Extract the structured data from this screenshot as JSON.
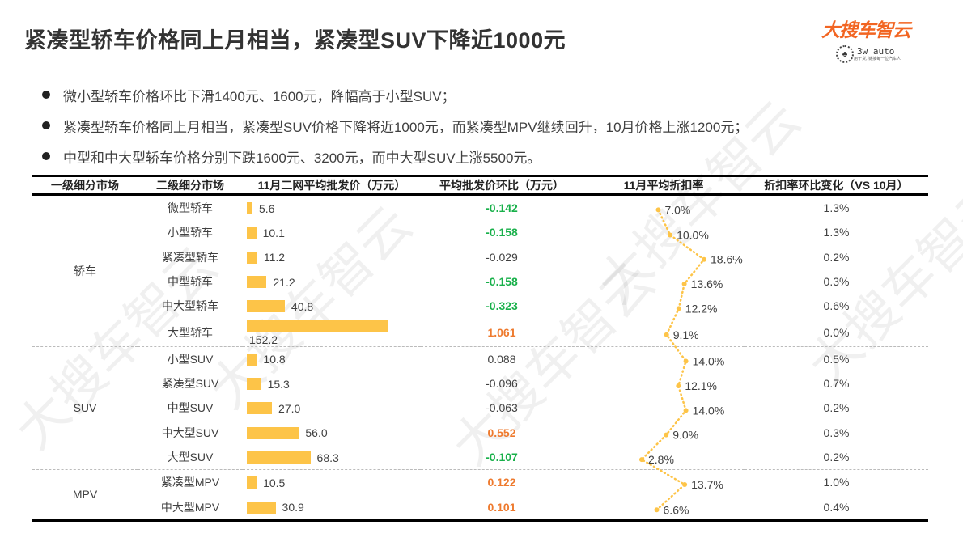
{
  "title": "紧凑型轿车价格同上月相当，紧凑型SUV下降近1000元",
  "logo": {
    "main": "大搜车智云",
    "sub": "3w auto",
    "tagline": "用干货, 链接每一位汽车人",
    "emblem": "♣"
  },
  "bullets": [
    "微小型轿车价格环比下滑1400元、1600元，降幅高于小型SUV；",
    "紧凑型轿车价格同上月相当，紧凑型SUV价格下降将近1000元，而紧凑型MPV继续回升，10月价格上涨1200元；",
    "中型和中大型轿车价格分别下跌1600元、3200元，而中大型SUV上涨5500元。"
  ],
  "table": {
    "headers": [
      "一级细分市场",
      "二级细分市场",
      "11月二网平均批发价（万元）",
      "平均批发价环比（万元）",
      "11月平均折扣率",
      "折扣率环比变化（VS 10月）"
    ],
    "groups": [
      "轿车",
      "SUV",
      "MPV"
    ]
  },
  "colors": {
    "bar": "#fdc448",
    "negative": "#18b04a",
    "positive": "#ee7a2e",
    "line": "#fdc448"
  },
  "watermark": "大搜车智云",
  "chart_data": {
    "type": "table",
    "title": "紧凑型轿车价格同上月相当，紧凑型SUV下降近1000元",
    "columns": [
      "一级细分市场",
      "二级细分市场",
      "11月二网平均批发价（万元）",
      "平均批发价环比（万元）",
      "11月平均折扣率",
      "折扣率环比变化（VS 10月）"
    ],
    "rows": [
      {
        "group": "轿车",
        "segment": "微型轿车",
        "price": 5.6,
        "mom": "-0.142",
        "discount": "7.0%",
        "discount_change": "1.3%"
      },
      {
        "group": "轿车",
        "segment": "小型轿车",
        "price": 10.1,
        "mom": "-0.158",
        "discount": "10.0%",
        "discount_change": "1.3%"
      },
      {
        "group": "轿车",
        "segment": "紧凑型轿车",
        "price": 11.2,
        "mom": "-0.029",
        "discount": "18.6%",
        "discount_change": "0.2%"
      },
      {
        "group": "轿车",
        "segment": "中型轿车",
        "price": 21.2,
        "mom": "-0.158",
        "discount": "13.6%",
        "discount_change": "0.3%"
      },
      {
        "group": "轿车",
        "segment": "中大型轿车",
        "price": 40.8,
        "mom": "-0.323",
        "discount": "12.2%",
        "discount_change": "0.6%"
      },
      {
        "group": "轿车",
        "segment": "大型轿车",
        "price": 152.2,
        "mom": "1.061",
        "discount": "9.1%",
        "discount_change": "0.0%"
      },
      {
        "group": "SUV",
        "segment": "小型SUV",
        "price": 10.8,
        "mom": "0.088",
        "discount": "14.0%",
        "discount_change": "0.5%"
      },
      {
        "group": "SUV",
        "segment": "紧凑型SUV",
        "price": 15.3,
        "mom": "-0.096",
        "discount": "12.1%",
        "discount_change": "0.7%"
      },
      {
        "group": "SUV",
        "segment": "中型SUV",
        "price": 27.0,
        "mom": "-0.063",
        "discount": "14.0%",
        "discount_change": "0.2%"
      },
      {
        "group": "SUV",
        "segment": "中大型SUV",
        "price": 56.0,
        "mom": "0.552",
        "discount": "9.0%",
        "discount_change": "0.3%"
      },
      {
        "group": "SUV",
        "segment": "大型SUV",
        "price": 68.3,
        "mom": "-0.107",
        "discount": "2.8%",
        "discount_change": "0.2%"
      },
      {
        "group": "MPV",
        "segment": "紧凑型MPV",
        "price": 10.5,
        "mom": "0.122",
        "discount": "13.7%",
        "discount_change": "1.0%"
      },
      {
        "group": "MPV",
        "segment": "中大型MPV",
        "price": 30.9,
        "mom": "0.101",
        "discount": "6.6%",
        "discount_change": "0.4%"
      }
    ],
    "mom_styles": [
      "neg",
      "neg",
      "neutral",
      "neg",
      "neg",
      "pos",
      "neutral",
      "neutral",
      "neutral",
      "pos",
      "neg",
      "pos",
      "pos"
    ],
    "embedded_bar": {
      "column": "11月二网平均批发价（万元）",
      "type": "bar"
    },
    "embedded_line": {
      "column": "11月平均折扣率",
      "type": "line",
      "values": [
        7.0,
        10.0,
        18.6,
        13.6,
        12.2,
        9.1,
        14.0,
        12.1,
        14.0,
        9.0,
        2.8,
        13.7,
        6.6
      ]
    }
  }
}
